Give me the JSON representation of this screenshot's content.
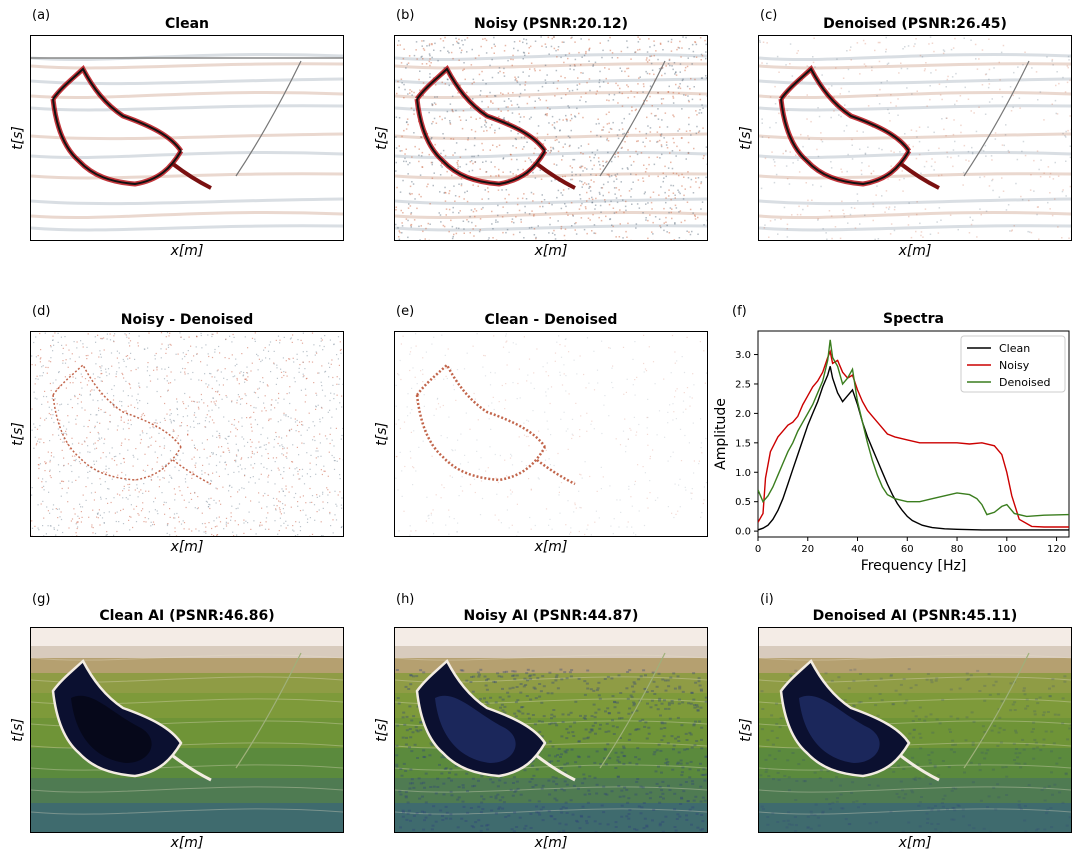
{
  "figure": {
    "panels": [
      {
        "letter": "(a)",
        "title": "Clean",
        "xlabel": "x[m]",
        "ylabel": "t[s]",
        "kind": "seis-clean"
      },
      {
        "letter": "(b)",
        "title": "Noisy (PSNR:20.12)",
        "xlabel": "x[m]",
        "ylabel": "t[s]",
        "kind": "seis-noisy"
      },
      {
        "letter": "(c)",
        "title": "Denoised (PSNR:26.45)",
        "xlabel": "x[m]",
        "ylabel": "t[s]",
        "kind": "seis-denoised"
      },
      {
        "letter": "(d)",
        "title": "Noisy - Denoised",
        "xlabel": "x[m]",
        "ylabel": "t[s]",
        "kind": "diff-noise"
      },
      {
        "letter": "(e)",
        "title": "Clean - Denoised",
        "xlabel": "x[m]",
        "ylabel": "t[s]",
        "kind": "diff-clean"
      },
      {
        "letter": "(g)",
        "title": "Clean AI (PSNR:46.86)",
        "xlabel": "x[m]",
        "ylabel": "t[s]",
        "kind": "ai-clean"
      },
      {
        "letter": "(h)",
        "title": "Noisy AI (PSNR:44.87)",
        "xlabel": "x[m]",
        "ylabel": "t[s]",
        "kind": "ai-noisy"
      },
      {
        "letter": "(i)",
        "title": "Denoised AI (PSNR:45.11)",
        "xlabel": "x[m]",
        "ylabel": "t[s]",
        "kind": "ai-denoised"
      }
    ],
    "spectra_panel": {
      "letter": "(f)",
      "title": "Spectra"
    }
  },
  "colors": {
    "clean": "#000000",
    "noisy": "#cc0000",
    "denoised": "#3a7d1e"
  },
  "chart_data": {
    "type": "line",
    "title": "Spectra",
    "xlabel": "Frequency [Hz]",
    "ylabel": "Amplitude",
    "xlim": [
      0,
      125
    ],
    "ylim": [
      -0.1,
      3.4
    ],
    "xticks": [
      0,
      20,
      40,
      60,
      80,
      100,
      120
    ],
    "yticks": [
      0.0,
      0.5,
      1.0,
      1.5,
      2.0,
      2.5,
      3.0
    ],
    "legend": "top-right",
    "series": [
      {
        "name": "Clean",
        "x": [
          0,
          2,
          4,
          6,
          8,
          10,
          12,
          14,
          16,
          18,
          20,
          22,
          24,
          26,
          28,
          29,
          30,
          32,
          34,
          36,
          38,
          40,
          42,
          44,
          46,
          48,
          50,
          52,
          54,
          56,
          58,
          60,
          62,
          64,
          66,
          68,
          70,
          75,
          80,
          90,
          100,
          110,
          125
        ],
        "y": [
          0.02,
          0.05,
          0.1,
          0.2,
          0.35,
          0.55,
          0.8,
          1.05,
          1.3,
          1.55,
          1.8,
          2.0,
          2.2,
          2.45,
          2.65,
          2.8,
          2.6,
          2.35,
          2.2,
          2.3,
          2.4,
          2.15,
          1.85,
          1.6,
          1.4,
          1.2,
          1.0,
          0.8,
          0.62,
          0.47,
          0.35,
          0.25,
          0.18,
          0.14,
          0.1,
          0.08,
          0.06,
          0.04,
          0.03,
          0.02,
          0.02,
          0.02,
          0.02
        ]
      },
      {
        "name": "Noisy",
        "x": [
          0,
          2,
          3,
          5,
          8,
          10,
          12,
          14,
          16,
          18,
          20,
          22,
          24,
          26,
          28,
          29,
          30,
          32,
          34,
          36,
          38,
          40,
          42,
          44,
          46,
          48,
          50,
          52,
          55,
          60,
          65,
          70,
          75,
          80,
          85,
          90,
          95,
          98,
          100,
          102,
          105,
          110,
          115,
          125
        ],
        "y": [
          0.15,
          0.3,
          0.9,
          1.35,
          1.6,
          1.7,
          1.8,
          1.85,
          1.95,
          2.15,
          2.3,
          2.45,
          2.55,
          2.7,
          2.95,
          3.05,
          2.85,
          2.9,
          2.7,
          2.6,
          2.65,
          2.4,
          2.2,
          2.05,
          1.95,
          1.85,
          1.75,
          1.65,
          1.6,
          1.55,
          1.5,
          1.5,
          1.5,
          1.5,
          1.48,
          1.5,
          1.45,
          1.3,
          1.0,
          0.6,
          0.2,
          0.08,
          0.07,
          0.07
        ]
      },
      {
        "name": "Denoised",
        "x": [
          0,
          2,
          4,
          6,
          8,
          10,
          12,
          14,
          16,
          18,
          20,
          22,
          24,
          26,
          28,
          29,
          30,
          32,
          34,
          36,
          38,
          40,
          42,
          44,
          46,
          48,
          50,
          52,
          55,
          60,
          65,
          70,
          75,
          80,
          85,
          88,
          90,
          92,
          95,
          98,
          100,
          103,
          108,
          115,
          125
        ],
        "y": [
          0.7,
          0.5,
          0.6,
          0.75,
          0.95,
          1.15,
          1.35,
          1.5,
          1.7,
          1.85,
          2.0,
          2.15,
          2.35,
          2.55,
          2.9,
          3.25,
          2.95,
          2.8,
          2.5,
          2.6,
          2.75,
          2.2,
          1.85,
          1.5,
          1.2,
          0.95,
          0.75,
          0.62,
          0.55,
          0.5,
          0.5,
          0.55,
          0.6,
          0.65,
          0.62,
          0.55,
          0.45,
          0.28,
          0.32,
          0.42,
          0.45,
          0.3,
          0.25,
          0.27,
          0.28
        ]
      }
    ]
  }
}
